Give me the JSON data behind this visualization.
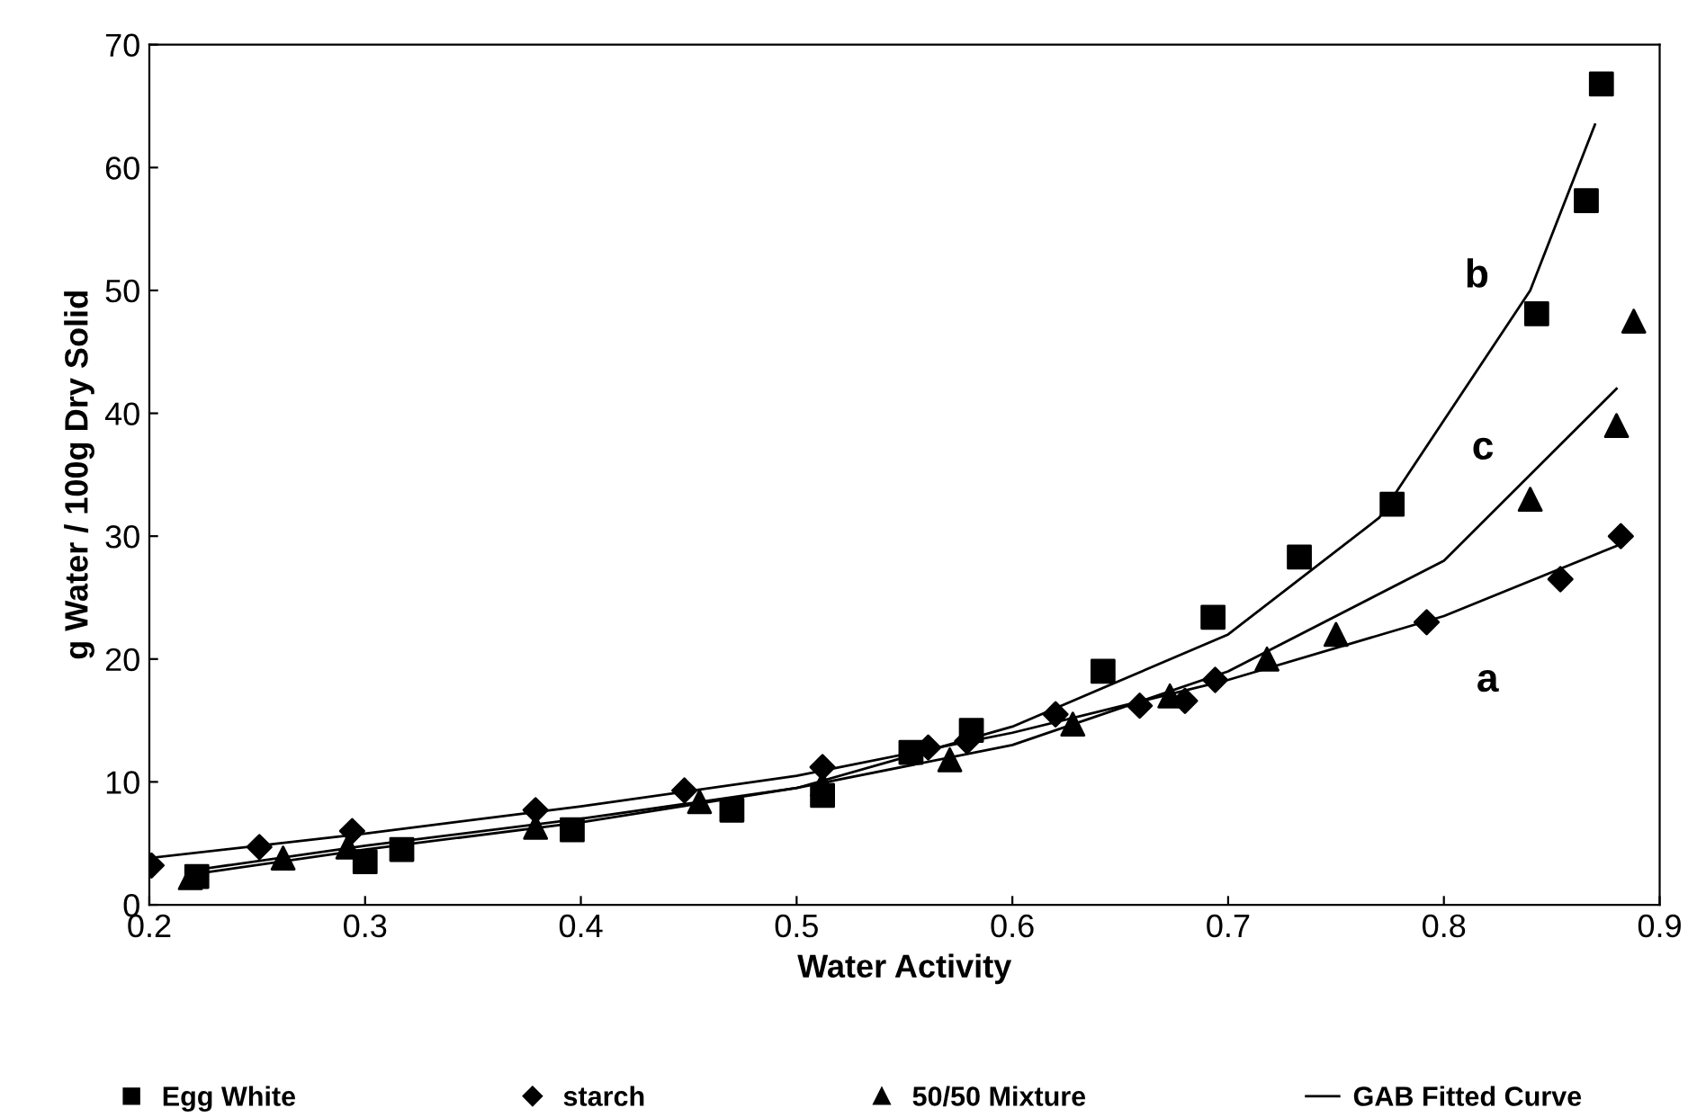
{
  "chart_data": {
    "type": "scatter",
    "xlabel": "Water Activity",
    "ylabel": "g Water / 100g Dry Solid",
    "xlim": [
      0.2,
      0.9
    ],
    "ylim": [
      0,
      70
    ],
    "xticks": [
      0.2,
      0.3,
      0.4,
      0.5,
      0.6,
      0.7,
      0.8,
      0.9
    ],
    "yticks": [
      0,
      10,
      20,
      30,
      40,
      50,
      60,
      70
    ],
    "grid": false,
    "legend": "bottom",
    "series": [
      {
        "name": "Egg White",
        "marker": "square",
        "color": "#000000",
        "x": [
          0.222,
          0.3,
          0.317,
          0.396,
          0.47,
          0.512,
          0.553,
          0.581,
          0.642,
          0.693,
          0.733,
          0.776,
          0.843,
          0.866,
          0.873
        ],
        "values": [
          2.3,
          3.5,
          4.5,
          6.1,
          7.7,
          8.9,
          12.4,
          14.2,
          19.0,
          23.4,
          28.3,
          32.6,
          48.1,
          57.3,
          66.8
        ]
      },
      {
        "name": "starch",
        "marker": "diamond",
        "color": "#000000",
        "x": [
          0.201,
          0.251,
          0.294,
          0.379,
          0.448,
          0.512,
          0.561,
          0.579,
          0.62,
          0.659,
          0.68,
          0.694,
          0.792,
          0.854,
          0.882
        ],
        "values": [
          3.2,
          4.7,
          6.0,
          7.7,
          9.3,
          11.2,
          12.8,
          13.3,
          15.5,
          16.2,
          16.6,
          18.3,
          23.0,
          26.5,
          30.0
        ]
      },
      {
        "name": "50/50 Mixture",
        "marker": "triangle",
        "color": "#000000",
        "x": [
          0.219,
          0.262,
          0.292,
          0.379,
          0.455,
          0.512,
          0.571,
          0.628,
          0.673,
          0.718,
          0.75,
          0.84,
          0.88,
          0.888
        ],
        "values": [
          2.2,
          3.8,
          4.7,
          6.3,
          8.4,
          9.8,
          11.8,
          14.7,
          17.0,
          20.0,
          22.0,
          33.0,
          39.0,
          47.5
        ]
      },
      {
        "name": "GAB Fitted Curve",
        "type": "line",
        "marker": "none",
        "line_style": "solid",
        "color": "#000000",
        "x": [
          0.2,
          0.3,
          0.4,
          0.5,
          0.6,
          0.7,
          0.8,
          0.88
        ],
        "values": [
          3.8,
          5.8,
          8.0,
          10.5,
          14.0,
          18.3,
          23.5,
          29.2
        ]
      },
      {
        "type": "line",
        "marker": "none",
        "line_style": "solid",
        "color": "#000000",
        "x": [
          0.225,
          0.3,
          0.4,
          0.5,
          0.6,
          0.7,
          0.77,
          0.84,
          0.87
        ],
        "values": [
          2.6,
          4.5,
          6.7,
          9.5,
          14.5,
          22.0,
          31.5,
          50.0,
          63.5
        ]
      },
      {
        "type": "line",
        "marker": "none",
        "line_style": "solid",
        "color": "#000000",
        "x": [
          0.22,
          0.3,
          0.4,
          0.5,
          0.6,
          0.7,
          0.8,
          0.88
        ],
        "values": [
          2.8,
          4.8,
          7.0,
          9.5,
          13.0,
          19.0,
          28.0,
          42.0
        ]
      }
    ],
    "annotations": [
      "a",
      "b",
      "c"
    ]
  }
}
